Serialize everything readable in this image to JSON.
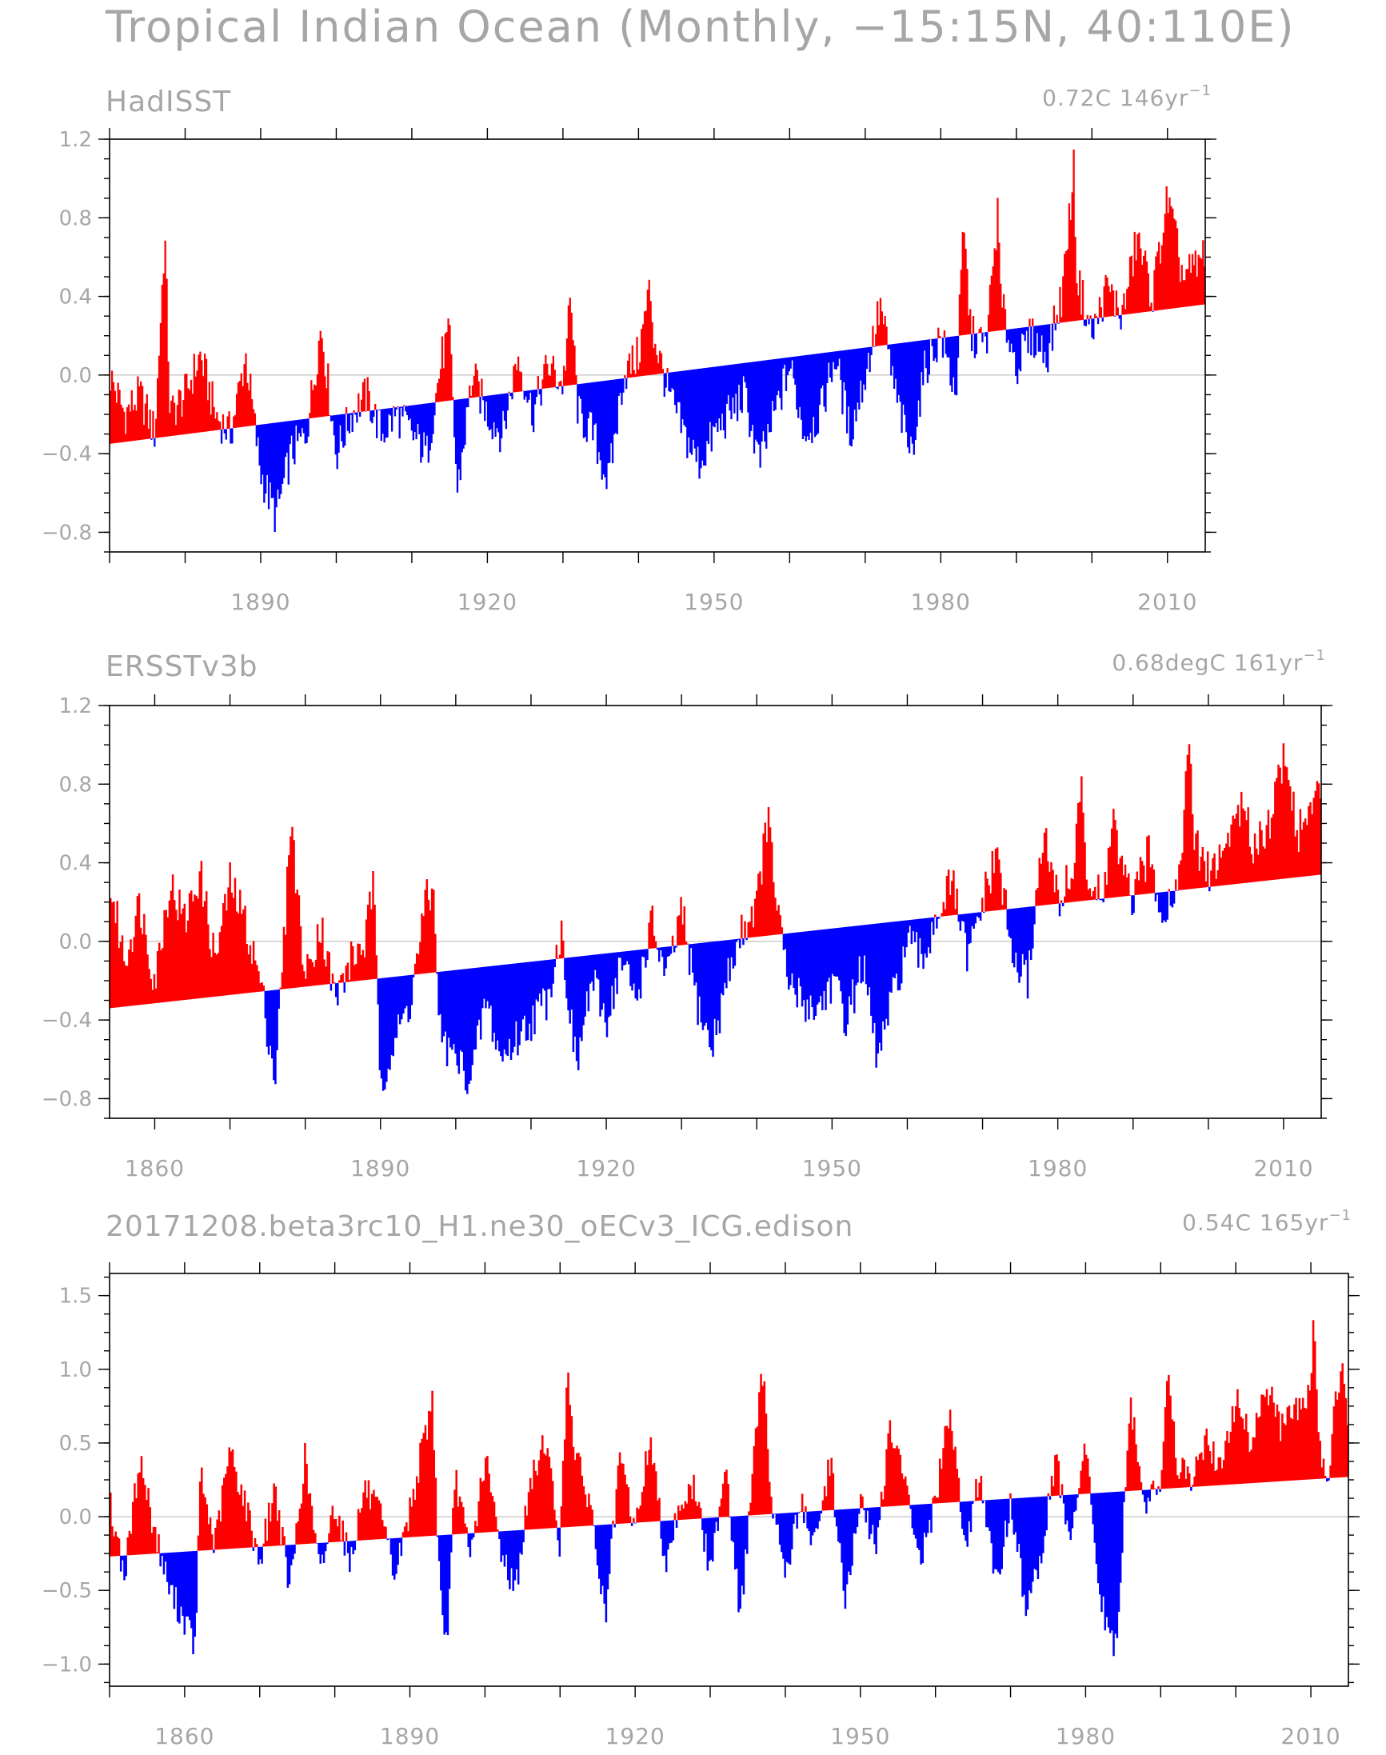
{
  "figure": {
    "title": "Tropical Indian Ocean (Monthly, −15:15N, 40:110E)"
  },
  "colors": {
    "positive": "#ff0000",
    "negative": "#0000ff",
    "text": "#a6a6a6",
    "zero_line": "#b3b3b3"
  },
  "chart_data": [
    {
      "type": "bar",
      "title": "HadISST",
      "trend_label": "0.72C",
      "period_label": "146yr",
      "period_exp": "−1",
      "xlim": [
        1870,
        2015
      ],
      "ylim": [
        -0.9,
        1.2
      ],
      "x_ticks": [
        "1890",
        "1920",
        "1950",
        "1980",
        "2010"
      ],
      "y_ticks": [
        "1.2",
        "0.8",
        "0.4",
        "0.0",
        "−0.4",
        "−0.8"
      ],
      "trend": {
        "x": [
          1870,
          2015
        ],
        "y": [
          -0.35,
          0.36
        ]
      },
      "baseline": 0.0,
      "fill_rule": "red above linear trend, blue below linear trend",
      "anomaly": {
        "x": [
          1870,
          1872,
          1874,
          1876,
          1877.3,
          1878,
          1880,
          1882,
          1884,
          1886,
          1888,
          1890,
          1892,
          1894,
          1896,
          1898,
          1900,
          1902,
          1904,
          1906,
          1908,
          1910,
          1912,
          1914,
          1915,
          1916,
          1918,
          1920,
          1922,
          1924,
          1926,
          1928,
          1930,
          1931,
          1932,
          1934,
          1936,
          1938,
          1940,
          1941.5,
          1942,
          1944,
          1946,
          1948,
          1950,
          1952,
          1954,
          1956,
          1958,
          1960,
          1962,
          1964,
          1966,
          1968,
          1970,
          1972,
          1974,
          1976,
          1978,
          1980,
          1982,
          1983,
          1984,
          1986,
          1987.5,
          1988,
          1990,
          1992,
          1994,
          1996,
          1997.6,
          1998,
          2000,
          2002,
          2004,
          2006,
          2008,
          2010,
          2012,
          2014,
          2015
        ],
        "y": [
          0.0,
          -0.2,
          -0.1,
          -0.3,
          0.72,
          -0.2,
          -0.1,
          0.1,
          -0.2,
          -0.3,
          0.1,
          -0.5,
          -0.72,
          -0.4,
          -0.3,
          0.25,
          -0.4,
          -0.2,
          -0.1,
          -0.3,
          -0.2,
          -0.3,
          -0.4,
          0.1,
          0.2,
          -0.6,
          0.0,
          -0.2,
          -0.3,
          0.1,
          -0.2,
          0.05,
          -0.05,
          0.38,
          -0.2,
          -0.3,
          -0.55,
          0.0,
          0.1,
          0.45,
          0.2,
          -0.1,
          -0.3,
          -0.45,
          -0.3,
          -0.2,
          -0.1,
          -0.45,
          -0.2,
          0.05,
          -0.3,
          -0.2,
          0.1,
          -0.3,
          0.0,
          0.35,
          -0.1,
          -0.4,
          0.05,
          0.2,
          -0.1,
          0.75,
          0.2,
          0.15,
          0.82,
          0.35,
          0.05,
          0.2,
          0.1,
          0.4,
          1.05,
          0.5,
          0.2,
          0.45,
          0.3,
          0.7,
          0.4,
          0.9,
          0.5,
          0.55,
          0.65
        ]
      }
    },
    {
      "type": "bar",
      "title": "ERSSTv3b",
      "trend_label": "0.68degC",
      "period_label": "161yr",
      "period_exp": "−1",
      "xlim": [
        1854,
        2015
      ],
      "ylim": [
        -0.9,
        1.2
      ],
      "x_ticks": [
        "1860",
        "1890",
        "1920",
        "1950",
        "1980",
        "2010"
      ],
      "y_ticks": [
        "1.2",
        "0.8",
        "0.4",
        "0.0",
        "−0.4",
        "−0.8"
      ],
      "trend": {
        "x": [
          1854,
          2015
        ],
        "y": [
          -0.34,
          0.34
        ]
      },
      "baseline": 0.0,
      "fill_rule": "red above linear trend, blue below linear trend",
      "anomaly": {
        "x": [
          1854,
          1856,
          1858,
          1860,
          1862,
          1864,
          1866,
          1868,
          1870,
          1872,
          1874,
          1876,
          1877.5,
          1878,
          1880,
          1882,
          1884,
          1886,
          1888,
          1889,
          1890,
          1892,
          1894,
          1896,
          1897,
          1898,
          1900,
          1902,
          1904,
          1906,
          1908,
          1910,
          1912,
          1914,
          1916,
          1918,
          1920,
          1922,
          1924,
          1926,
          1928,
          1930,
          1932,
          1934,
          1936,
          1938,
          1940,
          1941.5,
          1942,
          1944,
          1946,
          1948,
          1950,
          1952,
          1954,
          1956,
          1958,
          1960,
          1962,
          1964,
          1966,
          1968,
          1970,
          1972,
          1974,
          1976,
          1978,
          1980,
          1982,
          1983,
          1984,
          1986,
          1987.5,
          1988,
          1990,
          1992,
          1994,
          1996,
          1997.6,
          1998,
          2000,
          2002,
          2004,
          2006,
          2008,
          2010,
          2012,
          2014,
          2015
        ],
        "y": [
          0.3,
          -0.1,
          0.2,
          -0.2,
          0.3,
          0.1,
          0.35,
          -0.1,
          0.3,
          0.1,
          -0.2,
          -0.7,
          0.2,
          0.65,
          -0.2,
          0.1,
          -0.3,
          -0.1,
          0.0,
          0.3,
          -0.7,
          -0.5,
          -0.3,
          0.2,
          0.25,
          -0.5,
          -0.6,
          -0.7,
          -0.3,
          -0.6,
          -0.5,
          -0.4,
          -0.3,
          0.05,
          -0.65,
          -0.2,
          -0.4,
          -0.1,
          -0.3,
          0.1,
          -0.2,
          0.15,
          -0.3,
          -0.55,
          -0.2,
          0.05,
          0.2,
          0.65,
          0.4,
          -0.2,
          -0.3,
          -0.35,
          -0.2,
          -0.4,
          -0.1,
          -0.6,
          -0.3,
          0.0,
          -0.1,
          0.15,
          0.3,
          -0.1,
          0.2,
          0.45,
          -0.1,
          -0.2,
          0.55,
          0.2,
          0.35,
          0.8,
          0.3,
          0.2,
          0.7,
          0.4,
          0.2,
          0.45,
          0.15,
          0.3,
          1.05,
          0.5,
          0.35,
          0.45,
          0.7,
          0.5,
          0.6,
          0.95,
          0.55,
          0.7,
          0.75
        ]
      }
    },
    {
      "type": "bar",
      "title": "20171208.beta3rc10_H1.ne30_oECv3_ICG.edison",
      "trend_label": "0.54C",
      "period_label": "165yr",
      "period_exp": "−1",
      "xlim": [
        1850,
        2015
      ],
      "ylim": [
        -1.15,
        1.65
      ],
      "x_ticks": [
        "1860",
        "1890",
        "1920",
        "1950",
        "1980",
        "2010"
      ],
      "y_ticks": [
        "1.5",
        "1.0",
        "0.5",
        "0.0",
        "−0.5",
        "−1.0"
      ],
      "trend": {
        "x": [
          1850,
          2015
        ],
        "y": [
          -0.27,
          0.27
        ]
      },
      "baseline": 0.0,
      "fill_rule": "red above linear trend, blue below linear trend",
      "anomaly": {
        "x": [
          1850,
          1852,
          1854,
          1856,
          1858,
          1860,
          1861.5,
          1862,
          1864,
          1866,
          1868,
          1870,
          1872,
          1874,
          1876,
          1878,
          1880,
          1882,
          1884,
          1886,
          1888,
          1890,
          1892,
          1893,
          1894,
          1895,
          1896,
          1898,
          1900,
          1902,
          1904,
          1906,
          1908,
          1910,
          1911,
          1912,
          1914,
          1916,
          1918,
          1920,
          1922,
          1924,
          1926,
          1928,
          1930,
          1932,
          1934,
          1936,
          1937,
          1938,
          1940,
          1942,
          1944,
          1946,
          1948,
          1950,
          1952,
          1954,
          1956,
          1958,
          1960,
          1962,
          1964,
          1966,
          1968,
          1970,
          1972,
          1974,
          1976,
          1978,
          1980,
          1982,
          1984,
          1986,
          1988,
          1990,
          1991,
          1992,
          1994,
          1996,
          1998,
          2000,
          2002,
          2004,
          2006,
          2008,
          2010,
          2010.4,
          2011,
          2012,
          2014,
          2015
        ],
        "y": [
          0.1,
          -0.4,
          0.4,
          -0.1,
          -0.5,
          -0.7,
          -0.9,
          0.3,
          -0.2,
          0.45,
          0.1,
          -0.3,
          0.2,
          -0.5,
          0.4,
          -0.4,
          0.1,
          -0.3,
          0.2,
          0.0,
          -0.4,
          0.05,
          0.55,
          0.8,
          -0.5,
          -0.9,
          0.3,
          -0.3,
          0.4,
          -0.2,
          -0.5,
          0.2,
          0.55,
          -0.2,
          1.05,
          0.4,
          0.1,
          -0.7,
          0.4,
          -0.1,
          0.55,
          -0.3,
          0.1,
          0.2,
          -0.4,
          0.4,
          -0.7,
          0.5,
          1.0,
          0.2,
          -0.4,
          0.1,
          -0.2,
          0.4,
          -0.6,
          0.1,
          -0.2,
          0.6,
          0.2,
          -0.3,
          0.1,
          0.75,
          -0.2,
          0.3,
          -0.5,
          0.1,
          -0.6,
          -0.3,
          0.4,
          -0.2,
          0.5,
          -0.6,
          -0.9,
          0.75,
          0.1,
          0.2,
          1.1,
          0.4,
          0.2,
          0.55,
          0.3,
          0.8,
          0.5,
          0.9,
          0.6,
          0.7,
          0.9,
          1.35,
          0.6,
          0.2,
          1.05,
          0.6
        ]
      }
    }
  ]
}
